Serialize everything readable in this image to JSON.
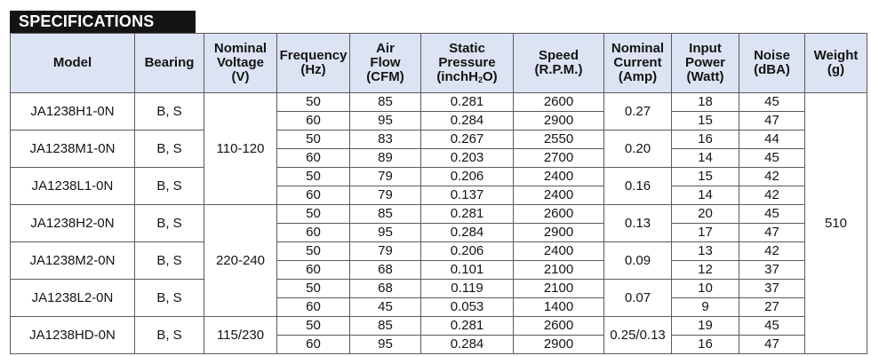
{
  "section_title": "SPECIFICATIONS",
  "headers": {
    "model": "Model",
    "bearing": "Bearing",
    "voltage": "Nominal\nVoltage\n(V)",
    "frequency": "Frequency\n(Hz)",
    "airflow": "Air\nFlow\n(CFM)",
    "pressure_pre": "Static\nPressure\n(inchH",
    "pressure_sub": "2",
    "pressure_post": "O)",
    "speed": "Speed\n(R.P.M.)",
    "current": "Nominal\nCurrent\n(Amp)",
    "power": "Input\nPower\n(Watt)",
    "noise": "Noise\n(dBA)",
    "weight": "Weight\n(g)"
  },
  "models": [
    {
      "model": "JA1238H1-0N",
      "bearing": "B, S",
      "current": "0.27",
      "rows": [
        {
          "freq": "50",
          "airflow": "85",
          "pressure": "0.281",
          "speed": "2600",
          "power": "18",
          "noise": "45"
        },
        {
          "freq": "60",
          "airflow": "95",
          "pressure": "0.284",
          "speed": "2900",
          "power": "15",
          "noise": "47"
        }
      ]
    },
    {
      "model": "JA1238M1-0N",
      "bearing": "B, S",
      "current": "0.20",
      "rows": [
        {
          "freq": "50",
          "airflow": "83",
          "pressure": "0.267",
          "speed": "2550",
          "power": "16",
          "noise": "44"
        },
        {
          "freq": "60",
          "airflow": "89",
          "pressure": "0.203",
          "speed": "2700",
          "power": "14",
          "noise": "45"
        }
      ]
    },
    {
      "model": "JA1238L1-0N",
      "bearing": "B, S",
      "current": "0.16",
      "rows": [
        {
          "freq": "50",
          "airflow": "79",
          "pressure": "0.206",
          "speed": "2400",
          "power": "15",
          "noise": "42"
        },
        {
          "freq": "60",
          "airflow": "79",
          "pressure": "0.137",
          "speed": "2400",
          "power": "14",
          "noise": "42"
        }
      ]
    },
    {
      "model": "JA1238H2-0N",
      "bearing": "B, S",
      "current": "0.13",
      "rows": [
        {
          "freq": "50",
          "airflow": "85",
          "pressure": "0.281",
          "speed": "2600",
          "power": "20",
          "noise": "45"
        },
        {
          "freq": "60",
          "airflow": "95",
          "pressure": "0.284",
          "speed": "2900",
          "power": "17",
          "noise": "47"
        }
      ]
    },
    {
      "model": "JA1238M2-0N",
      "bearing": "B, S",
      "current": "0.09",
      "rows": [
        {
          "freq": "50",
          "airflow": "79",
          "pressure": "0.206",
          "speed": "2400",
          "power": "13",
          "noise": "42"
        },
        {
          "freq": "60",
          "airflow": "68",
          "pressure": "0.101",
          "speed": "2100",
          "power": "12",
          "noise": "37"
        }
      ]
    },
    {
      "model": "JA1238L2-0N",
      "bearing": "B, S",
      "current": "0.07",
      "rows": [
        {
          "freq": "50",
          "airflow": "68",
          "pressure": "0.119",
          "speed": "2100",
          "power": "10",
          "noise": "37"
        },
        {
          "freq": "60",
          "airflow": "45",
          "pressure": "0.053",
          "speed": "1400",
          "power": "9",
          "noise": "27"
        }
      ]
    },
    {
      "model": "JA1238HD-0N",
      "bearing": "B, S",
      "current": "0.25/0.13",
      "rows": [
        {
          "freq": "50",
          "airflow": "85",
          "pressure": "0.281",
          "speed": "2600",
          "power": "19",
          "noise": "45"
        },
        {
          "freq": "60",
          "airflow": "95",
          "pressure": "0.284",
          "speed": "2900",
          "power": "16",
          "noise": "47"
        }
      ]
    }
  ],
  "voltage_groups": [
    {
      "value": "110-120",
      "model_count": 3
    },
    {
      "value": "220-240",
      "model_count": 3
    },
    {
      "value": "115/230",
      "model_count": 1
    }
  ],
  "weight": "510"
}
